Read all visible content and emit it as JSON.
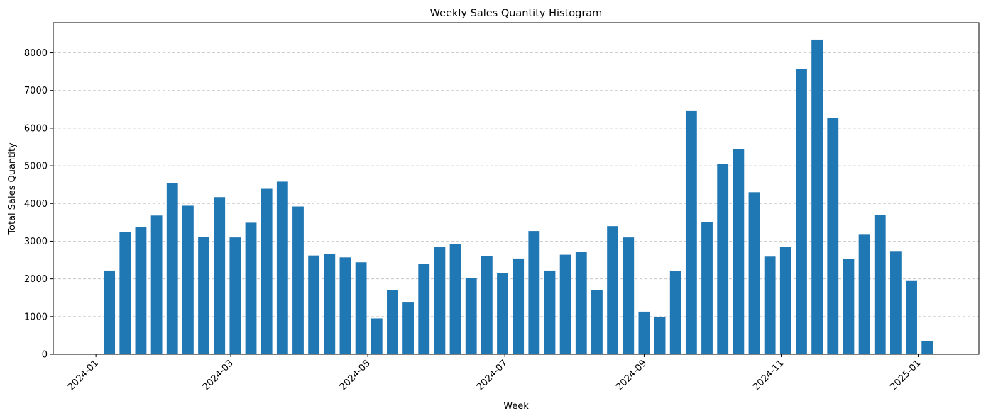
{
  "chart_data": {
    "type": "bar",
    "title": "Weekly Sales Quantity Histogram",
    "xlabel": "Week",
    "ylabel": "Total Sales Quantity",
    "x_axis": "date",
    "x_ticks": [
      "2024-01",
      "2024-03",
      "2024-05",
      "2024-07",
      "2024-09",
      "2024-11",
      "2025-01"
    ],
    "y_ticks": [
      0,
      1000,
      2000,
      3000,
      4000,
      5000,
      6000,
      7000,
      8000
    ],
    "xlim": [
      "2023-12-13",
      "2025-01-28"
    ],
    "ylim": [
      0,
      8800
    ],
    "grid": "y-dashed",
    "bar_color": "#1f77b4",
    "series": [
      {
        "x": [
          "2024-01-07",
          "2024-01-14",
          "2024-01-21",
          "2024-01-28",
          "2024-02-04",
          "2024-02-11",
          "2024-02-18",
          "2024-02-25",
          "2024-03-03",
          "2024-03-10",
          "2024-03-17",
          "2024-03-24",
          "2024-03-31",
          "2024-04-07",
          "2024-04-14",
          "2024-04-21",
          "2024-04-28",
          "2024-05-05",
          "2024-05-12",
          "2024-05-19",
          "2024-05-26",
          "2024-06-02",
          "2024-06-09",
          "2024-06-16",
          "2024-06-23",
          "2024-06-30",
          "2024-07-07",
          "2024-07-14",
          "2024-07-21",
          "2024-07-28",
          "2024-08-04",
          "2024-08-11",
          "2024-08-18",
          "2024-08-25",
          "2024-09-01",
          "2024-09-08",
          "2024-09-15",
          "2024-09-22",
          "2024-09-29",
          "2024-10-06",
          "2024-10-13",
          "2024-10-20",
          "2024-10-27",
          "2024-11-03",
          "2024-11-10",
          "2024-11-17",
          "2024-11-24",
          "2024-12-01",
          "2024-12-08",
          "2024-12-15",
          "2024-12-22",
          "2024-12-29",
          "2025-01-05"
        ],
        "values": [
          2220,
          3250,
          3380,
          3680,
          4540,
          3940,
          3110,
          4170,
          3100,
          3490,
          4390,
          4580,
          3920,
          2620,
          2660,
          2570,
          2440,
          950,
          1710,
          1390,
          2400,
          2850,
          2930,
          2030,
          2610,
          2160,
          2540,
          3270,
          2220,
          2640,
          2720,
          1710,
          3400,
          3100,
          1130,
          980,
          2200,
          6470,
          3510,
          5050,
          5440,
          4300,
          2590,
          2840,
          7560,
          8350,
          6280,
          2520,
          3190,
          3700,
          2740,
          1960,
          340
        ]
      }
    ]
  }
}
